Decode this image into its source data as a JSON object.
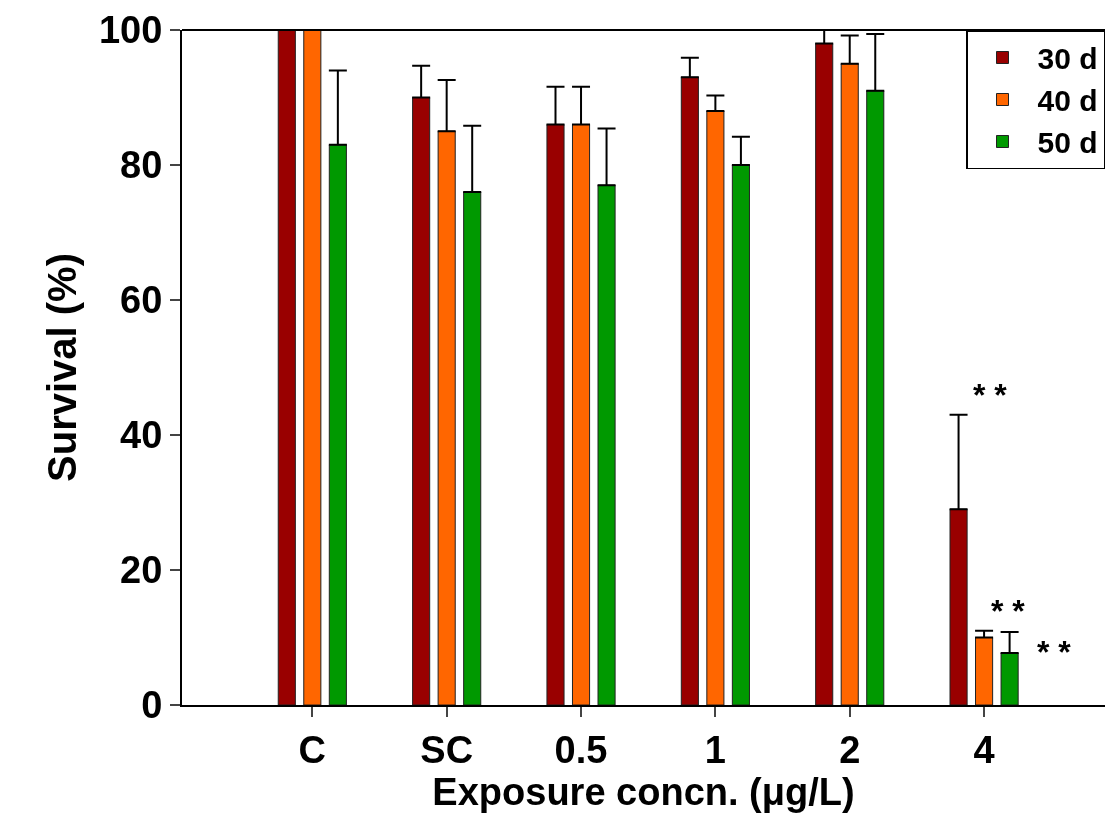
{
  "chart_data": {
    "type": "bar",
    "xlabel": "Exposure concn. (μg/L)",
    "ylabel": "Survival (%)",
    "categories": [
      "C",
      "SC",
      "0.5",
      "1",
      "2",
      "4"
    ],
    "series": [
      {
        "name": "30 d",
        "color": "#990000",
        "values": [
          100,
          90,
          86,
          93,
          98,
          29
        ],
        "errors": [
          null,
          [
            90,
            94.7
          ],
          [
            86,
            91.6
          ],
          [
            93,
            95.9
          ],
          [
            98,
            100
          ],
          [
            29,
            43
          ]
        ]
      },
      {
        "name": "40 d",
        "color": "#ff6600",
        "values": [
          100,
          85,
          86,
          88,
          95,
          10
        ],
        "errors": [
          null,
          [
            85,
            92.6
          ],
          [
            86,
            91.6
          ],
          [
            88,
            90.3
          ],
          [
            95,
            99.2
          ],
          [
            10,
            11
          ]
        ]
      },
      {
        "name": "50 d",
        "color": "#009900",
        "values": [
          83,
          76,
          77,
          80,
          91,
          7.7
        ],
        "errors": [
          [
            83,
            94
          ],
          [
            76,
            85.8
          ],
          [
            77,
            85.4
          ],
          [
            80,
            84.2
          ],
          [
            91,
            99.4
          ],
          [
            7.7,
            10.8
          ]
        ]
      }
    ],
    "ylim": [
      0,
      100
    ],
    "yticks": [
      0,
      20,
      40,
      60,
      80,
      100
    ],
    "legend": "top right",
    "annotations": [
      "* *",
      "* *",
      "* *"
    ]
  }
}
